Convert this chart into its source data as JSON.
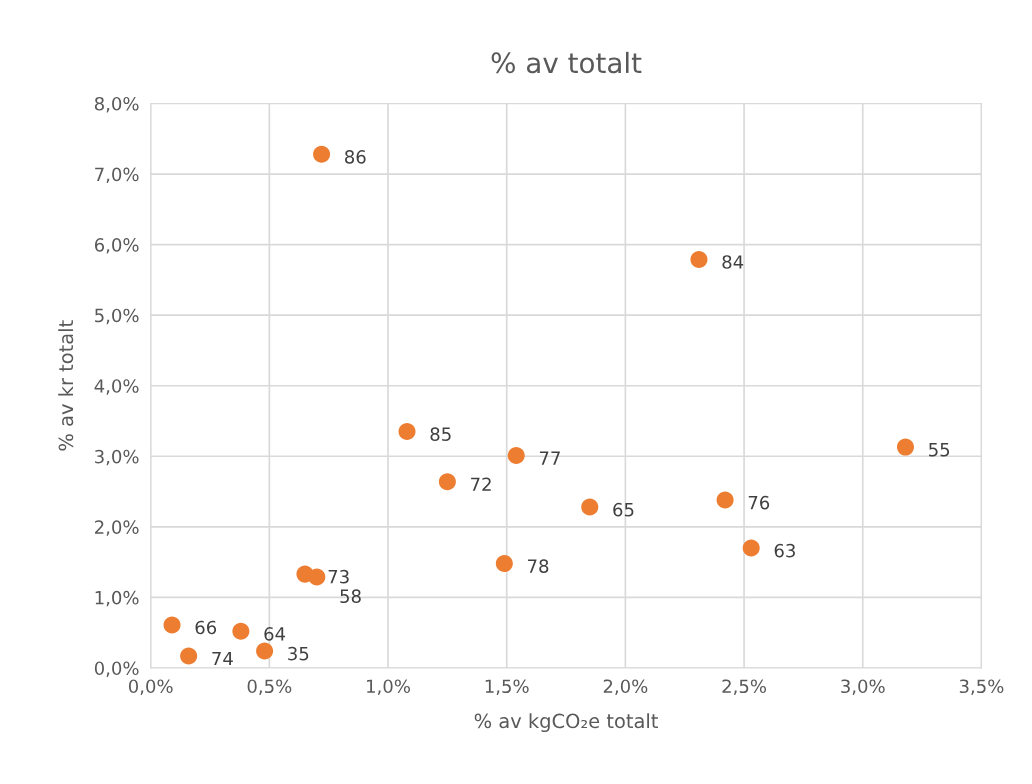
{
  "chart_data": {
    "type": "scatter",
    "title": "% av totalt",
    "xlabel": "% av kgCO₂e totalt",
    "ylabel": "% av kr totalt",
    "xlim": [
      0,
      3.5
    ],
    "ylim": [
      0,
      8
    ],
    "xticks": [
      {
        "value": 0,
        "label": "0,0%"
      },
      {
        "value": 0.5,
        "label": "0,5%"
      },
      {
        "value": 1,
        "label": "1,0%"
      },
      {
        "value": 1.5,
        "label": "1,5%"
      },
      {
        "value": 2,
        "label": "2,0%"
      },
      {
        "value": 2.5,
        "label": "2,5%"
      },
      {
        "value": 3,
        "label": "3,0%"
      },
      {
        "value": 3.5,
        "label": "3,5%"
      }
    ],
    "yticks": [
      {
        "value": 0,
        "label": "0,0%"
      },
      {
        "value": 1,
        "label": "1,0%"
      },
      {
        "value": 2,
        "label": "2,0%"
      },
      {
        "value": 3,
        "label": "3,0%"
      },
      {
        "value": 4,
        "label": "4,0%"
      },
      {
        "value": 5,
        "label": "5,0%"
      },
      {
        "value": 6,
        "label": "6,0%"
      },
      {
        "value": 7,
        "label": "7,0%"
      },
      {
        "value": 8,
        "label": "8,0%"
      }
    ],
    "grid": true,
    "marker": "circle",
    "series": [
      {
        "color": "#ed7d31",
        "x": [
          0.72,
          2.31,
          1.08,
          1.54,
          1.25,
          1.85,
          2.42,
          2.53,
          3.18,
          1.49,
          0.65,
          0.7,
          0.09,
          0.38,
          0.16,
          0.48
        ],
        "values": [
          7.28,
          5.79,
          3.35,
          3.01,
          2.64,
          2.28,
          2.38,
          1.7,
          3.13,
          1.48,
          1.33,
          1.29,
          0.61,
          0.52,
          0.17,
          0.24
        ]
      }
    ],
    "annotations": [
      {
        "text": "86",
        "x": 0.72,
        "y": 7.28
      },
      {
        "text": "84",
        "x": 2.31,
        "y": 5.79
      },
      {
        "text": "85",
        "x": 1.08,
        "y": 3.35
      },
      {
        "text": "77",
        "x": 1.54,
        "y": 3.01
      },
      {
        "text": "72",
        "x": 1.25,
        "y": 2.64
      },
      {
        "text": "65",
        "x": 1.85,
        "y": 2.28
      },
      {
        "text": "76",
        "x": 2.42,
        "y": 2.38
      },
      {
        "text": "63",
        "x": 2.53,
        "y": 1.7
      },
      {
        "text": "55",
        "x": 3.18,
        "y": 3.13
      },
      {
        "text": "78",
        "x": 1.49,
        "y": 1.48
      },
      {
        "text": "73",
        "x": 0.65,
        "y": 1.33
      },
      {
        "text": "58",
        "x": 0.7,
        "y": 1.29
      },
      {
        "text": "66",
        "x": 0.09,
        "y": 0.61
      },
      {
        "text": "64",
        "x": 0.38,
        "y": 0.52
      },
      {
        "text": "74",
        "x": 0.16,
        "y": 0.17
      },
      {
        "text": "35",
        "x": 0.48,
        "y": 0.24
      }
    ]
  }
}
